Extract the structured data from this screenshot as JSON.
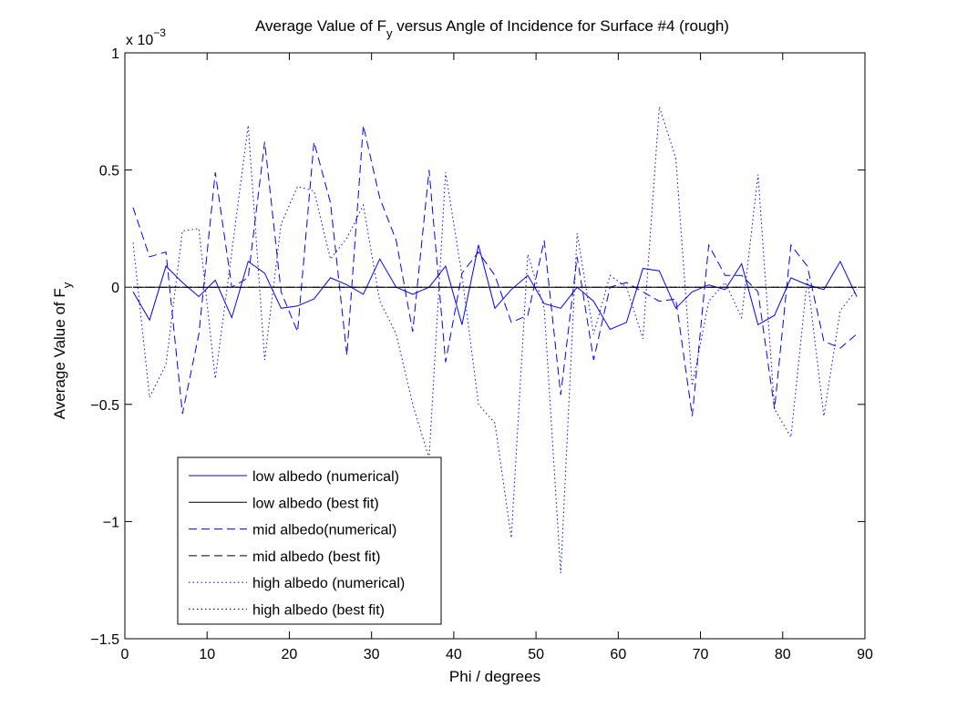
{
  "chart_data": {
    "type": "line",
    "title_main": "Average Value of F",
    "title_sub": "y",
    "title_rest": " versus Angle of Incidence for Surface #4 (rough)",
    "xlabel": "Phi / degrees",
    "ylabel_main": "Average Value of F",
    "ylabel_sub": "y",
    "y_multiplier_base": "x 10",
    "y_multiplier_exp": "−3",
    "xlim": [
      0,
      90
    ],
    "ylim": [
      -1.5,
      1
    ],
    "xticks": [
      0,
      10,
      20,
      30,
      40,
      50,
      60,
      70,
      80,
      90
    ],
    "xtick_labels": [
      "0",
      "10",
      "20",
      "30",
      "40",
      "50",
      "60",
      "70",
      "80",
      "90"
    ],
    "yticks": [
      -1.5,
      -1,
      -0.5,
      0,
      0.5,
      1
    ],
    "ytick_labels": [
      "−1.5",
      "−1",
      "−0.5",
      "0",
      "0.5",
      "1"
    ],
    "legend_position": "lower-left",
    "x": [
      1,
      3,
      5,
      7,
      9,
      11,
      13,
      15,
      17,
      19,
      21,
      23,
      25,
      27,
      29,
      31,
      33,
      35,
      37,
      39,
      41,
      43,
      45,
      47,
      49,
      51,
      53,
      55,
      57,
      59,
      61,
      63,
      65,
      67,
      69,
      71,
      73,
      75,
      77,
      79,
      81,
      83,
      85,
      87,
      89
    ],
    "series": [
      {
        "name": "low albedo (numerical)",
        "color": "#0000ff",
        "dash": "solid",
        "values": [
          -0.02,
          -0.14,
          0.09,
          0.02,
          -0.04,
          0.03,
          -0.13,
          0.11,
          0.06,
          -0.09,
          -0.08,
          -0.05,
          0.04,
          0.01,
          -0.03,
          0.12,
          0.0,
          -0.03,
          0.0,
          0.09,
          -0.16,
          0.18,
          -0.09,
          -0.01,
          0.05,
          -0.07,
          -0.09,
          0.0,
          -0.06,
          -0.18,
          -0.15,
          0.08,
          0.07,
          -0.09,
          -0.02,
          0.01,
          -0.01,
          0.1,
          -0.16,
          -0.12,
          0.04,
          0.01,
          -0.01,
          0.11,
          -0.04
        ]
      },
      {
        "name": "low albedo (best fit)",
        "color": "#000000",
        "dash": "solid",
        "values": [
          0,
          0,
          0,
          0,
          0,
          0,
          0,
          0,
          0,
          0,
          0,
          0,
          0,
          0,
          0,
          0,
          0,
          0,
          0,
          0,
          0,
          0,
          0,
          0,
          0,
          0,
          0,
          0,
          0,
          0,
          0,
          0,
          0,
          0,
          0,
          0,
          0,
          0,
          0,
          0,
          0,
          0,
          0,
          0,
          0
        ]
      },
      {
        "name": "mid albedo(numerical)",
        "color": "#0000ff",
        "dash": "dashed",
        "values": [
          0.34,
          0.13,
          0.15,
          -0.54,
          -0.2,
          0.49,
          0.0,
          0.04,
          0.62,
          -0.02,
          -0.19,
          0.62,
          0.36,
          -0.29,
          0.69,
          0.38,
          0.2,
          -0.19,
          0.5,
          -0.32,
          0.06,
          0.15,
          0.05,
          -0.15,
          -0.12,
          0.2,
          -0.46,
          0.13,
          -0.31,
          0.0,
          0.02,
          -0.02,
          -0.06,
          -0.05,
          -0.55,
          0.18,
          0.05,
          0.05,
          -0.02,
          -0.52,
          0.18,
          0.09,
          -0.23,
          -0.26,
          -0.2
        ]
      },
      {
        "name": "mid albedo (best fit)",
        "color": "#000000",
        "dash": "dashed",
        "values": [
          0,
          0,
          0,
          0,
          0,
          0,
          0,
          0,
          0,
          0,
          0,
          0,
          0,
          0,
          0,
          0,
          0,
          0,
          0,
          0,
          0,
          0,
          0,
          0,
          0,
          0,
          0,
          0,
          0,
          0,
          0,
          0,
          0,
          0,
          0,
          0,
          0,
          0,
          0,
          0,
          0,
          0,
          0,
          0,
          0
        ]
      },
      {
        "name": "high albedo (numerical)",
        "color": "#0000ff",
        "dash": "dotted",
        "values": [
          0.19,
          -0.47,
          -0.33,
          0.24,
          0.25,
          -0.39,
          0.15,
          0.69,
          -0.31,
          0.27,
          0.43,
          0.41,
          0.12,
          0.21,
          0.35,
          -0.06,
          -0.2,
          -0.5,
          -0.73,
          0.49,
          0.05,
          -0.5,
          -0.58,
          -1.07,
          0.14,
          -0.09,
          -1.22,
          0.23,
          -0.2,
          0.05,
          0.0,
          -0.22,
          0.77,
          0.55,
          -0.42,
          -0.06,
          0.02,
          -0.13,
          0.48,
          -0.52,
          -0.64,
          0.04,
          -0.55,
          -0.1,
          -0.01
        ]
      },
      {
        "name": "high albedo (best fit)",
        "color": "#000000",
        "dash": "dotted",
        "values": [
          0,
          0,
          0,
          0,
          0,
          0,
          0,
          0,
          0,
          0,
          0,
          0,
          0,
          0,
          0,
          0,
          0,
          0,
          0,
          0,
          0,
          0,
          0,
          0,
          0,
          0,
          0,
          0,
          0,
          0,
          0,
          0,
          0,
          0,
          0,
          0,
          0,
          0,
          0,
          0,
          0,
          0,
          0,
          0,
          0
        ]
      }
    ]
  }
}
